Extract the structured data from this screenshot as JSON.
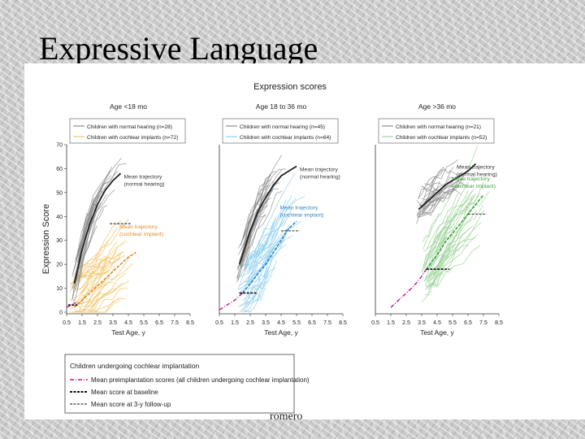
{
  "slide": {
    "title": "Expressive Language",
    "footer": "romero"
  },
  "figure": {
    "main_title": "Expression scores",
    "y_axis_label": "Expression Score",
    "x_axis_label": "Test Age, y",
    "legend": {
      "title": "Children undergoing cochlear implantation",
      "items": [
        "Mean preimplantation scores (all children undergoing cochlear implantation)",
        "Mean score at baseline",
        "Mean score at 3-y follow-up"
      ]
    }
  },
  "colors": {
    "normal_hearing": "#8c8c8c",
    "mean_normal": "#222222",
    "preimplant": "#c2188b",
    "panel1_ci": "#f2c56b",
    "panel1_mean_ci": "#e08a2c",
    "panel2_ci": "#8fd0ee",
    "panel2_mean_ci": "#2f86c8",
    "panel3_ci": "#9fd39b",
    "panel3_mean_ci": "#3aa63a"
  },
  "chart_data": [
    {
      "type": "line",
      "title": "Age <18 mo",
      "xlabel": "Test Age, y",
      "ylabel": "Expression Score",
      "xlim": [
        0.5,
        8.5
      ],
      "ylim": [
        0,
        70
      ],
      "x_ticks": [
        "0.5",
        "1.5",
        "2.5",
        "3.5",
        "4.5",
        "5.5",
        "6.5",
        "7.5",
        "8.5"
      ],
      "y_ticks": [
        "0",
        "10",
        "20",
        "30",
        "40",
        "50",
        "60",
        "70"
      ],
      "legend_title": "",
      "legend": [
        "Children with normal hearing (n=28)",
        "Children with cochlear implants (n=72)"
      ],
      "annotations": [
        "Mean trajectory (normal hearing)",
        "Mean trajectory (cochlear implant)"
      ],
      "series": [
        {
          "name": "Mean trajectory (normal hearing)",
          "x": [
            1.0,
            1.5,
            2.0,
            2.5,
            3.0,
            3.5,
            4.0
          ],
          "y": [
            12,
            26,
            37,
            45,
            51,
            55,
            58
          ]
        },
        {
          "name": "Mean trajectory (cochlear implant)",
          "x": [
            1.0,
            1.5,
            2.0,
            2.5,
            3.0,
            3.5,
            4.0,
            4.5,
            5.0
          ],
          "y": [
            2,
            5,
            8,
            11,
            14,
            17,
            20,
            23,
            25
          ]
        },
        {
          "name": "Mean preimplantation scores",
          "x": [
            0.5,
            0.8,
            1.1
          ],
          "y": [
            2,
            3,
            4
          ]
        }
      ],
      "baseline_mean": {
        "x": [
          0.6,
          1.2
        ],
        "y": 3
      },
      "followup_mean": {
        "x": [
          3.3,
          4.7
        ],
        "y": 37
      }
    },
    {
      "type": "line",
      "title": "Age 18 to 36 mo",
      "xlabel": "Test Age, y",
      "ylabel": "",
      "xlim": [
        0.5,
        8.5
      ],
      "ylim": [
        0,
        70
      ],
      "x_ticks": [
        "0.5",
        "1.5",
        "2.5",
        "3.5",
        "4.5",
        "5.5",
        "6.5",
        "7.5",
        "8.5"
      ],
      "legend": [
        "Children with normal hearing (n=45)",
        "Children with cochlear implants (n=64)"
      ],
      "annotations": [
        "Mean trajectory (normal hearing)",
        "Mean trajectory (cochlear implant)"
      ],
      "series": [
        {
          "name": "Mean trajectory (normal hearing)",
          "x": [
            1.8,
            2.5,
            3.0,
            3.5,
            4.0,
            4.5,
            5.0,
            5.5
          ],
          "y": [
            20,
            34,
            42,
            48,
            53,
            57,
            59,
            61
          ]
        },
        {
          "name": "Mean trajectory (cochlear implant)",
          "x": [
            2.0,
            2.5,
            3.0,
            3.5,
            4.0,
            4.5,
            5.0,
            5.5
          ],
          "y": [
            8,
            12,
            16,
            20,
            25,
            30,
            35,
            38
          ]
        },
        {
          "name": "Mean preimplantation scores",
          "x": [
            0.5,
            1.0,
            1.5,
            2.0
          ],
          "y": [
            1,
            3,
            5,
            8
          ]
        }
      ],
      "baseline_mean": {
        "x": [
          1.8,
          2.9
        ],
        "y": 8
      },
      "followup_mean": {
        "x": [
          4.5,
          5.7
        ],
        "y": 34
      }
    },
    {
      "type": "line",
      "title": "Age >36 mo",
      "xlabel": "Test Age, y",
      "ylabel": "",
      "xlim": [
        0.5,
        8.5
      ],
      "ylim": [
        0,
        70
      ],
      "x_ticks": [
        "0.5",
        "1.5",
        "2.5",
        "3.5",
        "4.5",
        "5.5",
        "6.5",
        "7.5",
        "8.5"
      ],
      "legend": [
        "Children with normal hearing (n=21)",
        "Children with cochlear implants (n=52)"
      ],
      "annotations": [
        "Mean trajectory (normal hearing)",
        "Mean trajectory (cochlear implant)"
      ],
      "series": [
        {
          "name": "Mean trajectory (normal hearing)",
          "x": [
            3.3,
            4.0,
            4.5,
            5.0,
            5.5,
            6.0,
            6.5,
            7.0
          ],
          "y": [
            43,
            47,
            50,
            53,
            55,
            57,
            59,
            62
          ]
        },
        {
          "name": "Mean trajectory (cochlear implant)",
          "x": [
            3.8,
            4.5,
            5.0,
            5.5,
            6.0,
            6.5,
            7.0,
            7.5
          ],
          "y": [
            18,
            24,
            29,
            33,
            37,
            41,
            45,
            49
          ]
        },
        {
          "name": "Mean preimplantation scores",
          "x": [
            1.5,
            2.0,
            2.5,
            3.0,
            3.5,
            3.8
          ],
          "y": [
            2,
            5,
            8,
            11,
            15,
            18
          ]
        }
      ],
      "baseline_mean": {
        "x": [
          3.8,
          5.3
        ],
        "y": 18
      },
      "followup_mean": {
        "x": [
          6.5,
          7.7
        ],
        "y": 41
      }
    }
  ]
}
